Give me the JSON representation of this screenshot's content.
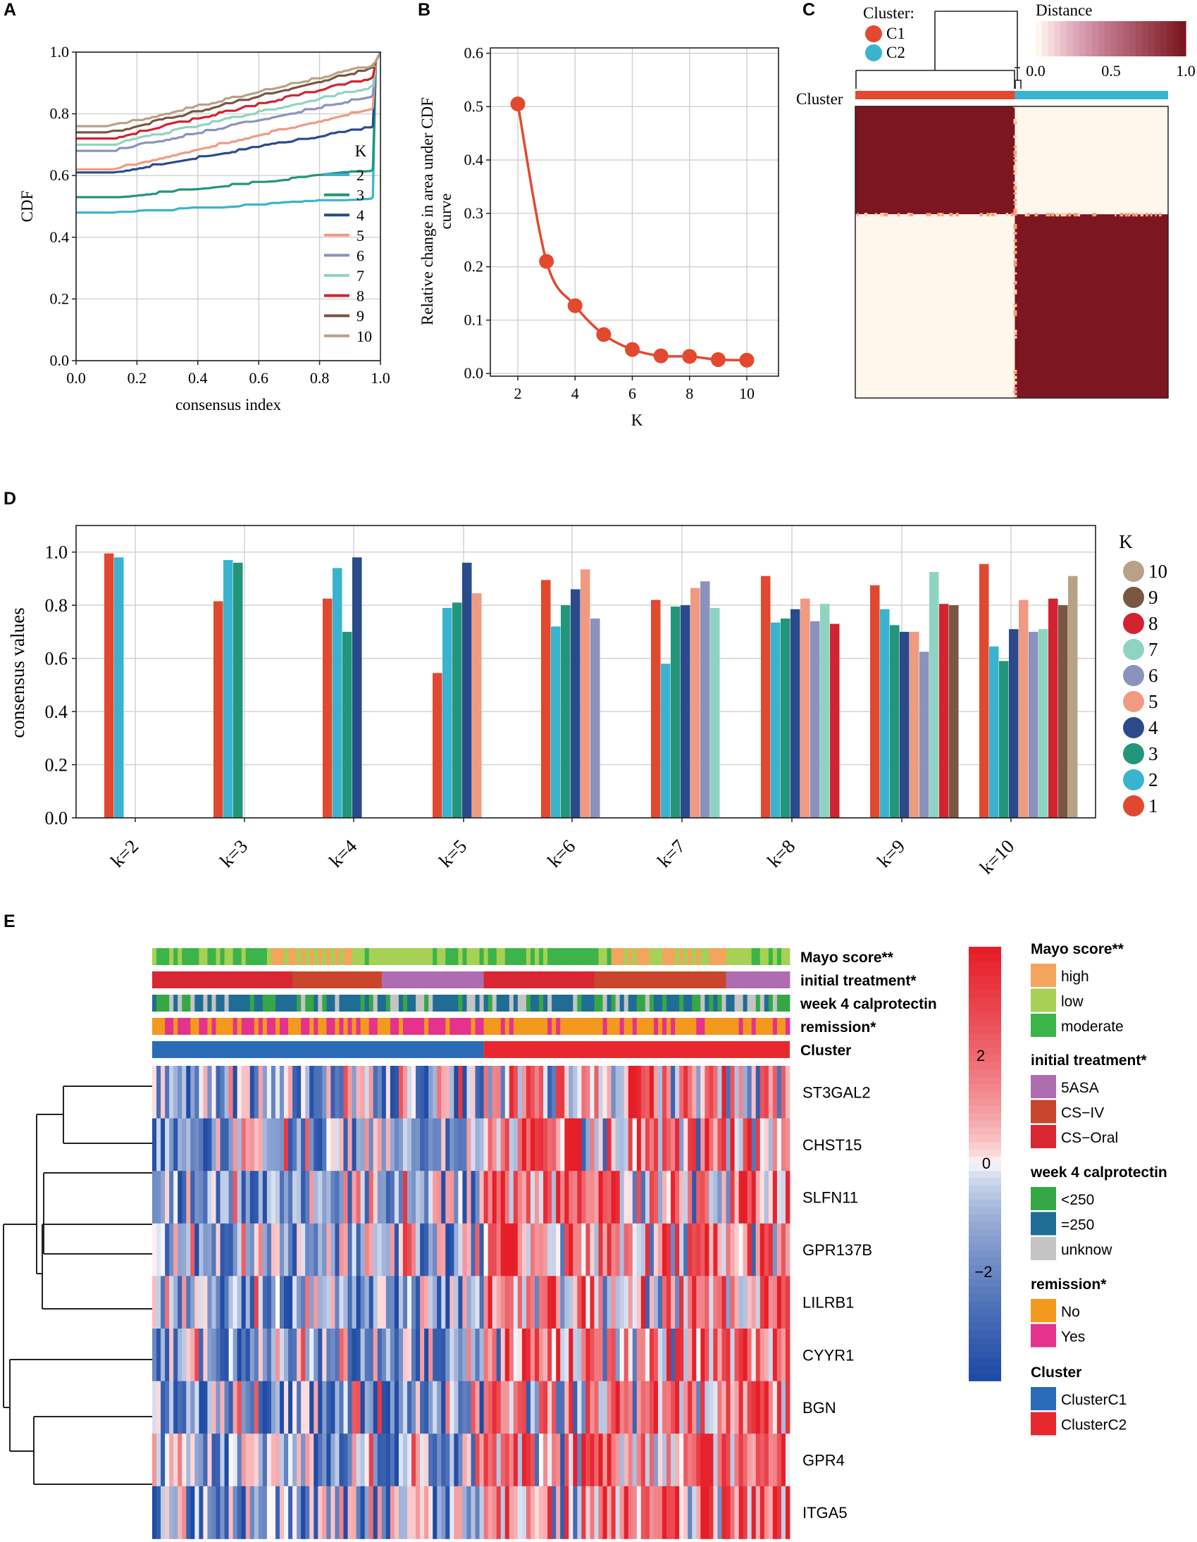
{
  "panels": {
    "A": "A",
    "B": "B",
    "C": "C",
    "D": "D",
    "E": "E"
  },
  "colors": {
    "k2": "#3ab3cf",
    "k3": "#22957a",
    "k4": "#2a4a8c",
    "k5": "#f09a82",
    "k6": "#8a93bd",
    "k7": "#8fd4c2",
    "k8": "#d12430",
    "k9": "#7a5742",
    "k10": "#b9a187",
    "k1": "#e0492f",
    "line_b": "#e2492e",
    "heat_dark": "#7c1620",
    "heat_light": "#fff6ec",
    "clusterC1": "#2b6cb8",
    "clusterC2": "#e8282f",
    "mayo_high": "#f3a55d",
    "mayo_low": "#a6d155",
    "mayo_moderate": "#3bb44a",
    "tx_5asa": "#b06cb0",
    "tx_csiv": "#c9452b",
    "tx_csoral": "#d82632",
    "calp_lt250": "#35a845",
    "calp_eq250": "#1f6d95",
    "calp_unknow": "#c4c4c4",
    "rem_no": "#f39a1e",
    "rem_yes": "#e5328d"
  },
  "chart_data": [
    {
      "id": "A",
      "type": "line",
      "xlabel": "consensus index",
      "ylabel": "CDF",
      "xlim": [
        0,
        1
      ],
      "ylim": [
        0,
        1
      ],
      "xticks": [
        "0.0",
        "0.2",
        "0.4",
        "0.6",
        "0.8",
        "1.0"
      ],
      "yticks": [
        "0.0",
        "0.2",
        "0.4",
        "0.6",
        "0.8",
        "1.0"
      ],
      "legend_title": "K",
      "series": [
        {
          "name": "2",
          "start": 0.48,
          "end": 0.53
        },
        {
          "name": "3",
          "start": 0.53,
          "end": 0.62
        },
        {
          "name": "4",
          "start": 0.61,
          "end": 0.76
        },
        {
          "name": "5",
          "start": 0.62,
          "end": 0.82
        },
        {
          "name": "6",
          "start": 0.68,
          "end": 0.86
        },
        {
          "name": "7",
          "start": 0.7,
          "end": 0.89
        },
        {
          "name": "8",
          "start": 0.72,
          "end": 0.92
        },
        {
          "name": "9",
          "start": 0.74,
          "end": 0.95
        },
        {
          "name": "10",
          "start": 0.76,
          "end": 0.96
        }
      ]
    },
    {
      "id": "B",
      "type": "line",
      "xlabel": "K",
      "ylabel": "Relative change in area under CDF curve",
      "ylabel_lines": [
        "Relative change in area under CDF",
        "curve"
      ],
      "ylim": [
        0,
        0.6
      ],
      "xticks": [
        "2",
        "4",
        "6",
        "8",
        "10"
      ],
      "yticks": [
        "0.0",
        "0.1",
        "0.2",
        "0.3",
        "0.4",
        "0.5",
        "0.6"
      ],
      "x": [
        2,
        3,
        4,
        5,
        6,
        7,
        8,
        9,
        10
      ],
      "y": [
        0.505,
        0.21,
        0.127,
        0.073,
        0.045,
        0.033,
        0.032,
        0.026,
        0.025
      ]
    },
    {
      "id": "C",
      "type": "heatmap",
      "legend_title": "Cluster:",
      "legend_items": [
        "C1",
        "C2"
      ],
      "row_label": "Cluster",
      "colorbar_title": "Distance",
      "colorbar_ticks": [
        "0.0",
        "0.5",
        "1.0"
      ],
      "clusters": [
        {
          "name": "C1",
          "fraction": 0.51
        },
        {
          "name": "C2",
          "fraction": 0.49
        }
      ]
    },
    {
      "id": "D",
      "type": "bar",
      "ylabel": "consensus values",
      "ylim": [
        0,
        1.1
      ],
      "yticks": [
        "0.0",
        "0.2",
        "0.4",
        "0.6",
        "0.8",
        "1.0"
      ],
      "categories": [
        "k=2",
        "k=3",
        "k=4",
        "k=5",
        "k=6",
        "k=7",
        "k=8",
        "k=9",
        "k=10"
      ],
      "legend_title": "K",
      "legend_items": [
        "10",
        "9",
        "8",
        "7",
        "6",
        "5",
        "4",
        "3",
        "2",
        "1"
      ],
      "groups": [
        [
          0.995,
          0.98
        ],
        [
          0.815,
          0.97,
          0.96
        ],
        [
          0.825,
          0.94,
          0.7,
          0.98
        ],
        [
          0.545,
          0.79,
          0.81,
          0.96,
          0.845
        ],
        [
          0.895,
          0.72,
          0.8,
          0.86,
          0.935,
          0.75
        ],
        [
          0.82,
          0.58,
          0.795,
          0.8,
          0.865,
          0.89,
          0.79
        ],
        [
          0.91,
          0.735,
          0.75,
          0.785,
          0.825,
          0.74,
          0.805,
          0.73
        ],
        [
          0.875,
          0.785,
          0.725,
          0.7,
          0.7,
          0.625,
          0.925,
          0.805,
          0.8
        ],
        [
          0.955,
          0.645,
          0.59,
          0.71,
          0.82,
          0.7,
          0.71,
          0.825,
          0.8,
          0.91
        ]
      ]
    },
    {
      "id": "E",
      "type": "heatmap",
      "genes": [
        "ST3GAL2",
        "CHST15",
        "SLFN11",
        "GPR137B",
        "LILRB1",
        "CYYR1",
        "BGN",
        "GPR4",
        "ITGA5"
      ],
      "annotation_tracks": [
        "Mayo score**",
        "initial treatment*",
        "week 4 calprotectin",
        "remission*",
        "Cluster"
      ],
      "colorbar_ticks": [
        "2",
        "0",
        "−2"
      ],
      "legend": [
        {
          "title": "Mayo score**",
          "items": [
            "high",
            "low",
            "moderate"
          ]
        },
        {
          "title": "initial treatment*",
          "items": [
            "5ASA",
            "CS−IV",
            "CS−Oral"
          ]
        },
        {
          "title": "week 4 calprotectin",
          "items": [
            "<250",
            "=250",
            "unknow"
          ]
        },
        {
          "title": "remission*",
          "items": [
            "No",
            "Yes"
          ]
        },
        {
          "title": "Cluster",
          "items": [
            "ClusterC1",
            "ClusterC2"
          ]
        }
      ],
      "n_samples": 150,
      "cluster_split_fraction": 0.52
    }
  ]
}
